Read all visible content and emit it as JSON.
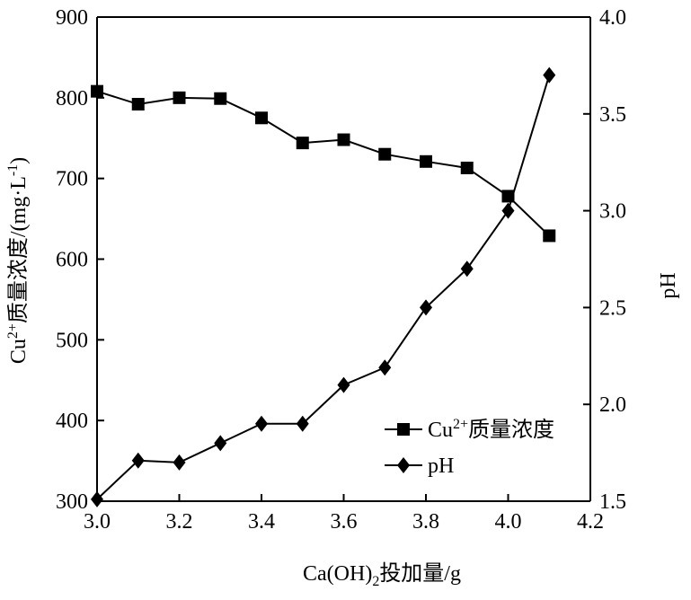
{
  "chart_data": {
    "type": "line",
    "x": [
      3.0,
      3.1,
      3.2,
      3.3,
      3.4,
      3.5,
      3.6,
      3.7,
      3.8,
      3.9,
      4.0,
      4.1
    ],
    "xlim": [
      3.0,
      4.2
    ],
    "xticks": [
      "3.0",
      "3.2",
      "3.4",
      "3.6",
      "3.8",
      "4.0",
      "4.2"
    ],
    "xlabel_main": "Ca(OH)",
    "xlabel_sub": "2",
    "xlabel_tail": "投加量/g",
    "ylim_left": [
      300,
      900
    ],
    "yticks_left": [
      "300",
      "400",
      "500",
      "600",
      "700",
      "800",
      "900"
    ],
    "ylabel_left_main": "Cu",
    "ylabel_left_sup": "2+",
    "ylabel_left_mid": "质量浓度/(mg·L",
    "ylabel_left_sup2": "-1",
    "ylabel_left_tail": ")",
    "ylim_right": [
      1.5,
      4.0
    ],
    "yticks_right": [
      "1.5",
      "2.0",
      "2.5",
      "3.0",
      "3.5",
      "4.0"
    ],
    "ylabel_right": "pH",
    "legend_position": "bottom-right",
    "series": [
      {
        "legend_main": "Cu",
        "legend_sup": "2+",
        "legend_tail": "质量浓度",
        "axis": "left",
        "marker": "square",
        "values": [
          808,
          792,
          800,
          799,
          775,
          744,
          748,
          730,
          721,
          713,
          678,
          629
        ]
      },
      {
        "name": "pH",
        "axis": "right",
        "marker": "diamond",
        "values": [
          1.51,
          1.71,
          1.7,
          1.8,
          1.9,
          1.9,
          2.1,
          2.19,
          2.5,
          2.7,
          3.0,
          3.7
        ]
      }
    ]
  }
}
